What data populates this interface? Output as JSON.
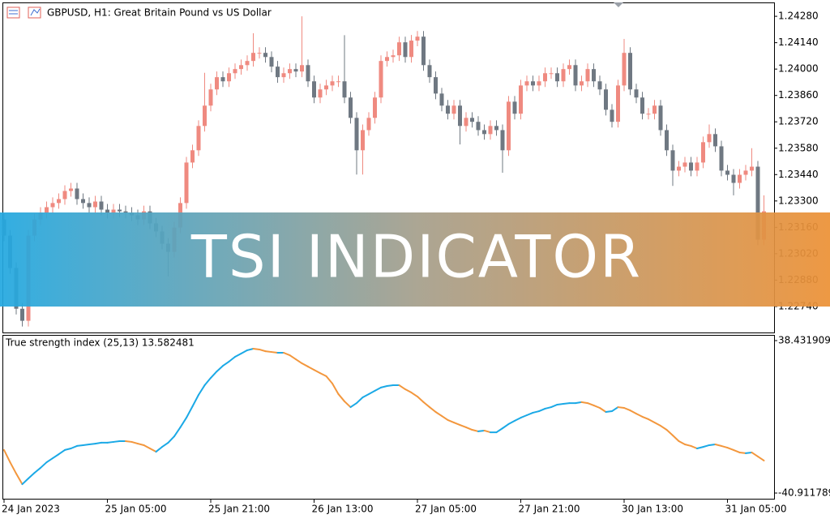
{
  "banner": "TSI INDICATOR",
  "chart_data": [
    {
      "type": "candlestick",
      "title": "GBPUSD, H1:  Great Britain Pound vs US Dollar",
      "up_color": "#ef8a80",
      "down_color": "#6f7882",
      "categories": [
        "24 Jan 2023",
        null,
        null,
        null,
        null,
        null,
        null,
        null,
        null,
        null,
        null,
        null,
        null,
        null,
        null,
        null,
        null,
        "25 Jan 05:00",
        null,
        null,
        null,
        null,
        null,
        null,
        null,
        null,
        null,
        null,
        null,
        null,
        null,
        null,
        null,
        null,
        "25 Jan 21:00",
        null,
        null,
        null,
        null,
        null,
        null,
        null,
        null,
        null,
        null,
        null,
        null,
        null,
        null,
        null,
        null,
        "26 Jan 13:00",
        null,
        null,
        null,
        null,
        null,
        null,
        null,
        null,
        null,
        null,
        null,
        null,
        null,
        null,
        null,
        null,
        "27 Jan 05:00",
        null,
        null,
        null,
        null,
        null,
        null,
        null,
        null,
        null,
        null,
        null,
        null,
        null,
        null,
        null,
        null,
        "27 Jan 21:00",
        null,
        null,
        null,
        null,
        null,
        null,
        null,
        null,
        null,
        null,
        null,
        null,
        null,
        null,
        null,
        null,
        "30 Jan 13:00",
        null,
        null,
        null,
        null,
        null,
        null,
        null,
        null,
        null,
        null,
        null,
        null,
        null,
        null,
        null,
        null,
        "31 Jan 05:00",
        null,
        null,
        null,
        null,
        null,
        null
      ],
      "open": [
        1.23202,
        1.23116,
        1.22944,
        1.22728,
        1.22664,
        1.23116,
        1.23202,
        1.23237,
        1.23267,
        1.23289,
        1.2331,
        1.23353,
        1.23366,
        1.2331,
        1.23289,
        1.23267,
        1.23297,
        1.23254,
        1.23237,
        1.23254,
        1.23245,
        1.23237,
        1.23224,
        1.23202,
        1.23245,
        1.23181,
        1.23138,
        1.23073,
        1.2303,
        1.23159,
        1.23289,
        1.23504,
        1.23569,
        1.23698,
        1.23806,
        1.23892,
        1.23957,
        1.23935,
        1.23978,
        1.24,
        1.24021,
        1.24043,
        1.24086,
        1.24086,
        1.24064,
        1.24013,
        1.23957,
        1.23978,
        1.24,
        1.23987,
        1.24021,
        1.23935,
        1.23849,
        1.23892,
        1.23913,
        1.23935,
        1.23935,
        1.23849,
        1.23741,
        1.23569,
        1.23676,
        1.23741,
        1.23849,
        1.24043,
        1.24064,
        1.24073,
        1.24142,
        1.24064,
        1.24151,
        1.24172,
        1.24021,
        1.23957,
        1.2387,
        1.23806,
        1.23763,
        1.23806,
        1.23698,
        1.23741,
        1.2372,
        1.23676,
        1.23655,
        1.23698,
        1.23676,
        1.23569,
        1.23827,
        1.23763,
        1.23913,
        1.23935,
        1.23913,
        1.23935,
        1.23978,
        1.23978,
        1.23935,
        1.24,
        1.24021,
        1.23913,
        1.23935,
        1.24,
        1.23935,
        1.23892,
        1.23784,
        1.2372,
        1.23913,
        1.24086,
        1.23892,
        1.23849,
        1.23763,
        1.23763,
        1.23806,
        1.23676,
        1.23569,
        1.23461,
        1.23482,
        1.23504,
        1.23461,
        1.23504,
        1.23612,
        1.23655,
        1.2359,
        1.23461,
        1.23439,
        1.23396,
        1.23439,
        1.23461,
        1.23482,
        1.23095
      ],
      "high": [
        1.23232,
        1.23146,
        1.22974,
        1.22758,
        1.23146,
        1.23232,
        1.23267,
        1.23297,
        1.23319,
        1.2334,
        1.23383,
        1.23396,
        1.23396,
        1.2334,
        1.23319,
        1.23327,
        1.23327,
        1.23284,
        1.23284,
        1.23284,
        1.23275,
        1.23267,
        1.23254,
        1.23275,
        1.23275,
        1.23211,
        1.23168,
        1.23103,
        1.23189,
        1.23319,
        1.23534,
        1.23599,
        1.23728,
        1.2398,
        1.23922,
        1.23987,
        1.23987,
        1.24008,
        1.2403,
        1.24051,
        1.24073,
        1.2419,
        1.24116,
        1.24116,
        1.24094,
        1.24043,
        1.24008,
        1.2403,
        1.2403,
        1.2428,
        1.24051,
        1.23965,
        1.23922,
        1.23943,
        1.23965,
        1.23965,
        1.2418,
        1.23879,
        1.23771,
        1.23706,
        1.23771,
        1.23879,
        1.24073,
        1.24094,
        1.24103,
        1.24172,
        1.24172,
        1.24181,
        1.24202,
        1.24202,
        1.24051,
        1.23987,
        1.239,
        1.23836,
        1.23836,
        1.23836,
        1.23771,
        1.23771,
        1.2375,
        1.23706,
        1.23728,
        1.23728,
        1.23706,
        1.23857,
        1.23857,
        1.23943,
        1.23965,
        1.23965,
        1.23965,
        1.24008,
        1.24008,
        1.24008,
        1.2403,
        1.24051,
        1.24051,
        1.23965,
        1.2403,
        1.2403,
        1.23965,
        1.23922,
        1.23814,
        1.23943,
        1.2416,
        1.24116,
        1.23922,
        1.23879,
        1.23793,
        1.23836,
        1.23836,
        1.23706,
        1.23599,
        1.23512,
        1.23534,
        1.23534,
        1.23534,
        1.23642,
        1.23706,
        1.23685,
        1.2362,
        1.23491,
        1.23469,
        1.23469,
        1.23491,
        1.2358,
        1.23512,
        1.2333
      ],
      "low": [
        1.23086,
        1.22914,
        1.22698,
        1.22634,
        1.22634,
        1.23086,
        1.23172,
        1.23207,
        1.23237,
        1.23259,
        1.2328,
        1.23323,
        1.2328,
        1.23259,
        1.23237,
        1.23237,
        1.23224,
        1.23207,
        1.23207,
        1.23215,
        1.23207,
        1.23194,
        1.23172,
        1.23172,
        1.23151,
        1.23108,
        1.23043,
        1.229,
        1.23,
        1.23129,
        1.23259,
        1.23474,
        1.23539,
        1.23668,
        1.23776,
        1.23862,
        1.23905,
        1.23905,
        1.23948,
        1.2397,
        1.23991,
        1.24013,
        1.24056,
        1.24034,
        1.23983,
        1.23927,
        1.23927,
        1.23948,
        1.23957,
        1.23957,
        1.23905,
        1.23819,
        1.23819,
        1.23862,
        1.23883,
        1.23905,
        1.23819,
        1.23711,
        1.2344,
        1.2344,
        1.23646,
        1.23711,
        1.23819,
        1.24013,
        1.24034,
        1.24043,
        1.24034,
        1.24034,
        1.24121,
        1.23991,
        1.23927,
        1.2384,
        1.23776,
        1.23733,
        1.23733,
        1.236,
        1.23668,
        1.2369,
        1.23646,
        1.23625,
        1.23625,
        1.23646,
        1.2345,
        1.23539,
        1.23733,
        1.23733,
        1.23883,
        1.23883,
        1.23883,
        1.23905,
        1.23948,
        1.23905,
        1.23905,
        1.2397,
        1.23883,
        1.23883,
        1.23905,
        1.23905,
        1.23862,
        1.23754,
        1.2369,
        1.2369,
        1.23883,
        1.23862,
        1.23819,
        1.23733,
        1.23733,
        1.23733,
        1.23646,
        1.23539,
        1.2338,
        1.23431,
        1.23452,
        1.23431,
        1.23431,
        1.23474,
        1.23582,
        1.2356,
        1.23431,
        1.23409,
        1.2333,
        1.23366,
        1.23409,
        1.23431,
        1.23065,
        1.23065
      ],
      "close": [
        1.23116,
        1.22944,
        1.22728,
        1.22664,
        1.23116,
        1.23202,
        1.23237,
        1.23267,
        1.23289,
        1.2331,
        1.23353,
        1.23366,
        1.2331,
        1.23289,
        1.23267,
        1.23297,
        1.23254,
        1.23237,
        1.23254,
        1.23245,
        1.23237,
        1.23224,
        1.23202,
        1.23245,
        1.23181,
        1.23138,
        1.23073,
        1.2303,
        1.23159,
        1.23289,
        1.23504,
        1.23569,
        1.23698,
        1.23806,
        1.23892,
        1.23957,
        1.23935,
        1.23978,
        1.24,
        1.24021,
        1.24043,
        1.24086,
        1.24086,
        1.24064,
        1.24013,
        1.23957,
        1.23978,
        1.24,
        1.23987,
        1.24021,
        1.23935,
        1.23849,
        1.23892,
        1.23913,
        1.23935,
        1.23935,
        1.23849,
        1.23741,
        1.23569,
        1.23676,
        1.23741,
        1.23849,
        1.24043,
        1.24064,
        1.24073,
        1.24142,
        1.24064,
        1.24151,
        1.24172,
        1.24021,
        1.23957,
        1.2387,
        1.23806,
        1.23763,
        1.23806,
        1.23698,
        1.23741,
        1.2372,
        1.23676,
        1.23655,
        1.23698,
        1.23676,
        1.23569,
        1.23827,
        1.23763,
        1.23913,
        1.23935,
        1.23913,
        1.23935,
        1.23978,
        1.23978,
        1.23935,
        1.24,
        1.24021,
        1.23913,
        1.23935,
        1.24,
        1.23935,
        1.23892,
        1.23784,
        1.2372,
        1.23913,
        1.24086,
        1.23892,
        1.23849,
        1.23763,
        1.23763,
        1.23806,
        1.23676,
        1.23569,
        1.23461,
        1.23482,
        1.23504,
        1.23461,
        1.23504,
        1.23612,
        1.23655,
        1.2359,
        1.23461,
        1.23439,
        1.23396,
        1.23439,
        1.23461,
        1.23482,
        1.23095,
        1.23245
      ],
      "ylim": [
        1.22602,
        1.24345
      ],
      "yticks": [
        {
          "value": 1.2428,
          "label": "1.24280"
        },
        {
          "value": 1.2414,
          "label": "1.24140"
        },
        {
          "value": 1.24,
          "label": "1.24000"
        },
        {
          "value": 1.2386,
          "label": "1.23860"
        },
        {
          "value": 1.2372,
          "label": "1.23720"
        },
        {
          "value": 1.2358,
          "label": "1.23580"
        },
        {
          "value": 1.2344,
          "label": "1.23440"
        },
        {
          "value": 1.233,
          "label": "1.23300"
        },
        {
          "value": 1.2316,
          "label": "1.23160"
        },
        {
          "value": 1.2302,
          "label": "1.23020"
        },
        {
          "value": 1.2288,
          "label": "1.22880"
        },
        {
          "value": 1.2274,
          "label": "1.22740"
        }
      ]
    },
    {
      "type": "line",
      "title": "True strength index (25,13) 13.582481",
      "rise_color": "#1ba9e6",
      "fall_color": "#f3973d",
      "values": [
        -18.5,
        -24.9,
        -30.8,
        -36.3,
        -33.3,
        -30.4,
        -27.8,
        -24.9,
        -22.8,
        -20.7,
        -18.5,
        -17.7,
        -16.4,
        -16.0,
        -15.6,
        -15.2,
        -14.7,
        -14.7,
        -14.3,
        -13.9,
        -13.9,
        -14.3,
        -15.2,
        -16.0,
        -17.7,
        -19.4,
        -16.9,
        -14.7,
        -11.4,
        -6.7,
        -1.7,
        4.2,
        10.2,
        15.2,
        19.0,
        22.4,
        25.3,
        27.5,
        30.0,
        31.7,
        33.4,
        34.2,
        33.8,
        32.9,
        32.5,
        32.1,
        32.1,
        30.8,
        28.7,
        26.6,
        24.9,
        23.2,
        21.5,
        19.9,
        16.1,
        10.6,
        6.8,
        3.8,
        5.9,
        8.9,
        10.6,
        12.3,
        14.0,
        14.8,
        15.2,
        15.2,
        13.1,
        11.4,
        9.3,
        6.4,
        3.8,
        1.3,
        -0.8,
        -2.9,
        -4.2,
        -5.5,
        -6.7,
        -8.0,
        -8.8,
        -8.4,
        -9.3,
        -9.3,
        -7.2,
        -5.0,
        -3.3,
        -1.7,
        -0.4,
        0.9,
        1.7,
        3.0,
        3.8,
        5.1,
        5.5,
        5.9,
        5.9,
        6.4,
        5.9,
        4.7,
        3.4,
        1.3,
        1.7,
        3.8,
        3.4,
        2.1,
        0.4,
        -1.2,
        -2.5,
        -4.2,
        -5.9,
        -8.0,
        -10.9,
        -13.9,
        -15.6,
        -16.4,
        -17.7,
        -16.9,
        -16.0,
        -15.6,
        -16.4,
        -17.3,
        -18.5,
        -19.8,
        -20.2,
        -19.8,
        -21.9,
        -24.0
      ],
      "ylim": [
        -40.911789,
        38.431909
      ],
      "yticks": [
        38.431909,
        -40.911789
      ]
    }
  ]
}
